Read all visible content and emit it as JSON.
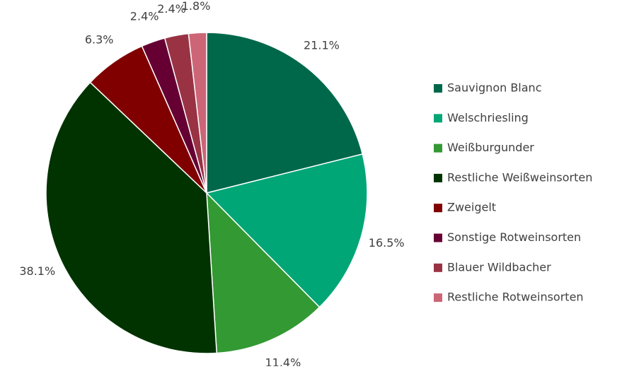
{
  "chart_data": {
    "type": "pie",
    "categories": [
      "Sauvignon Blanc",
      "Welschriesling",
      "Weißburgunder",
      "Restliche Weißweinsorten",
      "Zweigelt",
      "Sonstige Rotweinsorten",
      "Blauer Wildbacher",
      "Restliche Rotweinsorten"
    ],
    "values": [
      21.1,
      16.5,
      11.4,
      38.1,
      6.3,
      2.4,
      2.4,
      1.8
    ],
    "value_labels": [
      "21.1%",
      "16.5%",
      "11.4%",
      "38.1%",
      "6.3%",
      "2.4%",
      "2.4%",
      "1.8%"
    ],
    "colors": [
      "#00684a",
      "#00a676",
      "#339933",
      "#003300",
      "#800000",
      "#660033",
      "#993344",
      "#cc6677"
    ],
    "legend": "right"
  }
}
